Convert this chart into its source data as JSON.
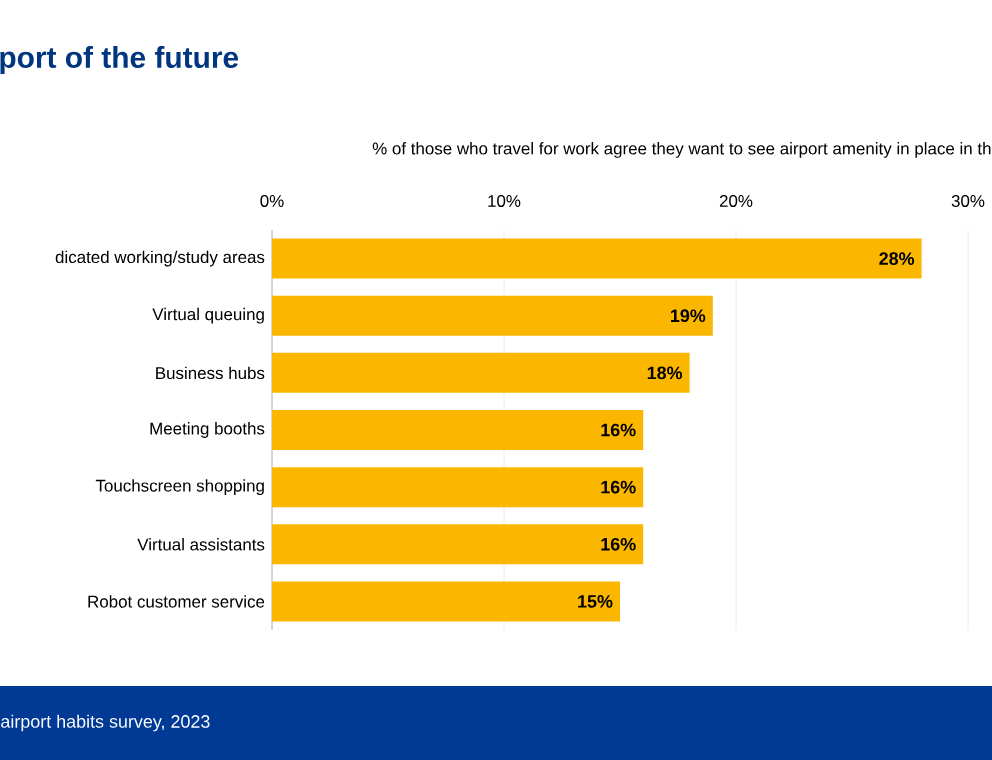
{
  "chart_data": {
    "type": "bar",
    "orientation": "horizontal",
    "title": "port of the future",
    "xlabel": "% of those who travel for work agree they want to see airport amenity in place in th",
    "categories": [
      "dicated working/study areas",
      "Virtual queuing",
      "Business hubs",
      "Meeting booths",
      "Touchscreen shopping",
      "Virtual assistants",
      "Robot customer service"
    ],
    "values": [
      28,
      19,
      18,
      16,
      16,
      16,
      15
    ],
    "value_labels": [
      "28%",
      "19%",
      "18%",
      "16%",
      "16%",
      "16%",
      "15%"
    ],
    "color": "#fbb700",
    "xlim": [
      0,
      30
    ],
    "xticks": [
      {
        "value": 0,
        "label": "0%"
      },
      {
        "value": 10,
        "label": "10%"
      },
      {
        "value": 20,
        "label": "20%"
      },
      {
        "value": 30,
        "label": "30%"
      }
    ],
    "grid": "x",
    "annotations": [
      "airport habits survey, 2023"
    ]
  }
}
